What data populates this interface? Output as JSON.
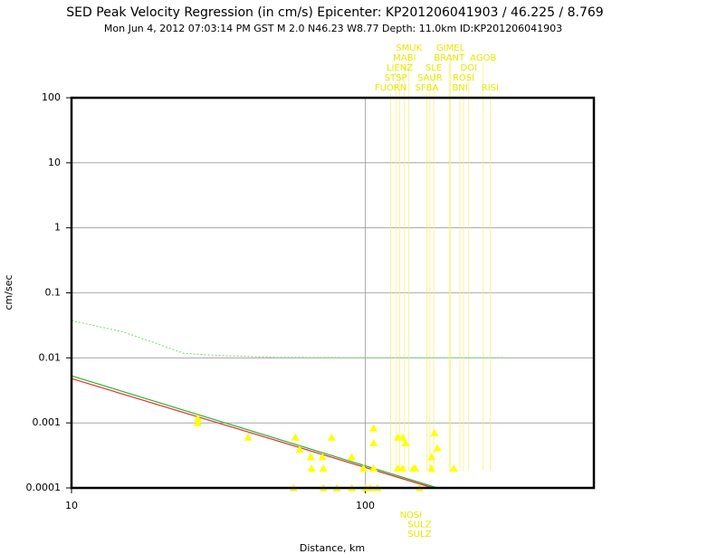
{
  "chart_data": {
    "type": "scatter",
    "title": "SED Peak Velocity Regression (in cm/s) Epicenter: KP201206041903 / 46.225 / 8.769",
    "subtitle": "Mon Jun  4, 2012 07:03:14 PM GST   M 2.0   N46.23 W8.77   Depth: 11.0km   ID:KP201206041903",
    "x_label": "Distance, km",
    "y_label": "cm/sec",
    "log_x": true,
    "log_y": true,
    "grid": true,
    "xlim": [
      10,
      600
    ],
    "ylim": [
      0.0001,
      100
    ],
    "xticks": [
      10,
      100
    ],
    "yticks": [
      100,
      10,
      1,
      0.1,
      0.01,
      0.001,
      0.0001
    ],
    "points": {
      "color": "#ffff00",
      "x": [
        26.9,
        26.9,
        39.9,
        57.8,
        59.8,
        65.2,
        65.6,
        71.5,
        72.0,
        76.8,
        89.9,
        98.6,
        106.7,
        106.7,
        106.7,
        129,
        134,
        137,
        129,
        134,
        146,
        148,
        168,
        172,
        176,
        168,
        200,
        57,
        72,
        80,
        90,
        100,
        104,
        110,
        153
      ],
      "y": [
        0.00117,
        0.001,
        0.0006,
        0.0006,
        0.00039,
        0.0003,
        0.0002,
        0.0003,
        0.0002,
        0.0006,
        0.0003,
        0.0002,
        0.00083,
        0.00049,
        0.0002,
        0.0006,
        0.0006,
        0.00049,
        0.0002,
        0.0002,
        0.0002,
        0.0002,
        0.0003,
        0.0007,
        0.00041,
        0.0002,
        0.0002,
        0.0001,
        0.0001,
        0.0001,
        0.0001,
        0.0001,
        0.0001,
        0.0001,
        0.0001
      ]
    },
    "lines": [
      {
        "color": "#e03030",
        "dash": false,
        "x": [
          10,
          170
        ],
        "y": [
          0.0048,
          0.0001
        ]
      },
      {
        "color": "#30b030",
        "dash": false,
        "x": [
          10,
          176
        ],
        "y": [
          0.0053,
          0.0001
        ]
      },
      {
        "color": "#7fd07f",
        "dash": true,
        "x": [
          10,
          15,
          20,
          24,
          30,
          50,
          100,
          200,
          300
        ],
        "y": [
          0.0375,
          0.025,
          0.016,
          0.0118,
          0.011,
          0.0102,
          0.0101,
          0.0101,
          0.0101
        ]
      }
    ],
    "station_labels": [
      [
        {
          "text": "SMUK",
          "distance": 140.8
        },
        {
          "text": "GIMEL",
          "distance": 195
        }
      ],
      [
        {
          "text": "MABI",
          "distance": 136
        },
        {
          "text": "BRANT",
          "distance": 193
        },
        {
          "text": "AGOB",
          "distance": 252
        }
      ],
      [
        {
          "text": "LIENZ",
          "distance": 131
        },
        {
          "text": "SLE",
          "distance": 171
        },
        {
          "text": "DOI",
          "distance": 225
        }
      ],
      [
        {
          "text": "STSP",
          "distance": 127
        },
        {
          "text": "SAUR",
          "distance": 166
        },
        {
          "text": "ROSI",
          "distance": 216
        }
      ],
      [
        {
          "text": "FUORN",
          "distance": 122
        },
        {
          "text": "SFBA",
          "distance": 162
        },
        {
          "text": "BNI",
          "distance": 210
        },
        {
          "text": "RISI",
          "distance": 266
        }
      ]
    ],
    "bottom_labels": [
      {
        "text": "NOSI",
        "distance": 143
      },
      {
        "text": "SULZ",
        "distance": 153
      },
      {
        "text": "SULZ",
        "distance": 153
      }
    ]
  }
}
